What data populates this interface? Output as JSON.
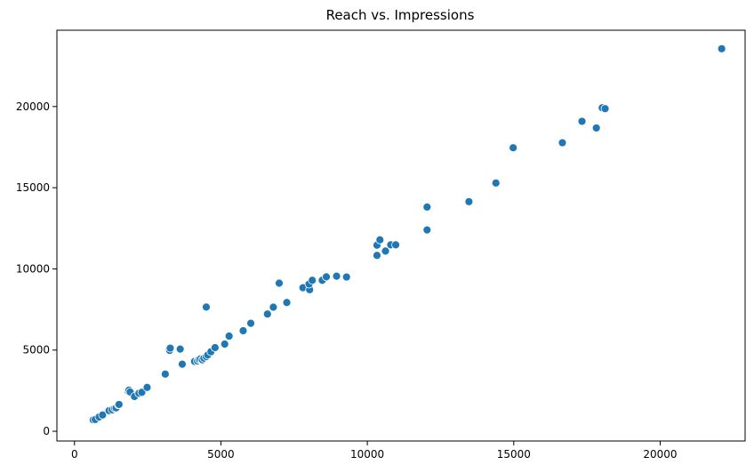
{
  "chart_data": {
    "type": "scatter",
    "title": "Reach vs. Impressions",
    "xlabel": "",
    "ylabel": "",
    "xlim": [
      -600,
      22900
    ],
    "ylim": [
      -600,
      24700
    ],
    "xticks": [
      0,
      5000,
      10000,
      15000,
      20000
    ],
    "yticks": [
      0,
      5000,
      10000,
      15000,
      20000
    ],
    "grid": false,
    "marker_color": "#1f77b4",
    "series": [
      {
        "points": [
          [
            640,
            700
          ],
          [
            710,
            720
          ],
          [
            840,
            880
          ],
          [
            960,
            1000
          ],
          [
            1180,
            1270
          ],
          [
            1290,
            1320
          ],
          [
            1370,
            1420
          ],
          [
            1420,
            1440
          ],
          [
            1500,
            1630
          ],
          [
            1520,
            1650
          ],
          [
            1830,
            2480
          ],
          [
            1860,
            2530
          ],
          [
            1900,
            2420
          ],
          [
            2050,
            2140
          ],
          [
            2200,
            2340
          ],
          [
            2300,
            2400
          ],
          [
            2480,
            2700
          ],
          [
            3100,
            3520
          ],
          [
            3230,
            5050
          ],
          [
            3250,
            4980
          ],
          [
            3270,
            5120
          ],
          [
            3610,
            5060
          ],
          [
            3680,
            4130
          ],
          [
            4100,
            4300
          ],
          [
            4200,
            4330
          ],
          [
            4250,
            4420
          ],
          [
            4300,
            4450
          ],
          [
            4370,
            4400
          ],
          [
            4420,
            4500
          ],
          [
            4500,
            4600
          ],
          [
            4550,
            4700
          ],
          [
            4500,
            7650
          ],
          [
            4660,
            4900
          ],
          [
            4800,
            5150
          ],
          [
            5130,
            5370
          ],
          [
            5280,
            5860
          ],
          [
            5760,
            6190
          ],
          [
            6020,
            6650
          ],
          [
            6590,
            7220
          ],
          [
            6790,
            7640
          ],
          [
            6990,
            9120
          ],
          [
            7250,
            7930
          ],
          [
            7800,
            8840
          ],
          [
            8030,
            8720
          ],
          [
            8010,
            9070
          ],
          [
            8120,
            9300
          ],
          [
            8460,
            9300
          ],
          [
            8600,
            9510
          ],
          [
            8950,
            9550
          ],
          [
            9290,
            9500
          ],
          [
            10330,
            10830
          ],
          [
            10330,
            11460
          ],
          [
            10430,
            11790
          ],
          [
            10620,
            11100
          ],
          [
            10800,
            11480
          ],
          [
            10970,
            11480
          ],
          [
            12040,
            12400
          ],
          [
            12040,
            13810
          ],
          [
            13470,
            14140
          ],
          [
            14390,
            15290
          ],
          [
            14980,
            17460
          ],
          [
            16660,
            17770
          ],
          [
            17330,
            19090
          ],
          [
            17820,
            18680
          ],
          [
            18020,
            19920
          ],
          [
            18120,
            19870
          ],
          [
            22100,
            23560
          ]
        ]
      }
    ]
  }
}
